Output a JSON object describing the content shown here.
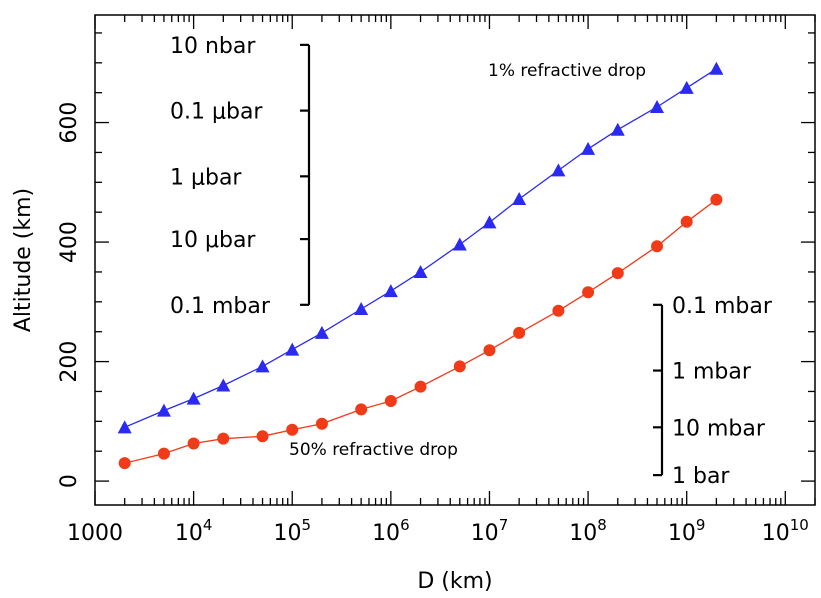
{
  "chart_data": {
    "type": "line",
    "xlabel": "D (km)",
    "ylabel": "Altitude (km)",
    "xscale": "log",
    "xlim": [
      1000,
      20000000000
    ],
    "ylim": [
      -40,
      780
    ],
    "grid": false,
    "legend": "none",
    "x_ticks": [
      {
        "value": 1000,
        "label": "1000"
      },
      {
        "value": 10000,
        "base": "10",
        "exp": "4"
      },
      {
        "value": 100000,
        "base": "10",
        "exp": "5"
      },
      {
        "value": 1000000,
        "base": "10",
        "exp": "6"
      },
      {
        "value": 10000000,
        "base": "10",
        "exp": "7"
      },
      {
        "value": 100000000,
        "base": "10",
        "exp": "8"
      },
      {
        "value": 1000000000,
        "base": "10",
        "exp": "9"
      },
      {
        "value": 10000000000,
        "base": "10",
        "exp": "10"
      }
    ],
    "y_ticks": [
      0,
      200,
      400,
      600
    ],
    "series": [
      {
        "marker": "triangle",
        "color": "#2a2af0",
        "x": [
          2000,
          5000,
          10000,
          20000,
          50000,
          100000,
          200000,
          500000,
          1000000,
          2000000,
          5000000,
          10000000,
          20000000,
          50000000,
          100000000,
          200000000,
          500000000,
          1000000000,
          2000000000
        ],
        "y": [
          90,
          118,
          138,
          160,
          192,
          220,
          248,
          288,
          318,
          350,
          396,
          433,
          472,
          520,
          556,
          588,
          626,
          658,
          690
        ]
      },
      {
        "marker": "circle",
        "color": "#f03a18",
        "x": [
          2000,
          5000,
          10000,
          20000,
          50000,
          100000,
          200000,
          500000,
          1000000,
          2000000,
          5000000,
          10000000,
          20000000,
          50000000,
          100000000,
          200000000,
          500000000,
          1000000000,
          2000000000
        ],
        "y": [
          30,
          46,
          63,
          71,
          75,
          86,
          96,
          120,
          134,
          158,
          192,
          219,
          248,
          285,
          316,
          348,
          393,
          434,
          471
        ]
      }
    ],
    "annotations": [
      {
        "text": "1% refractive drop",
        "color": "#2a2af0"
      },
      {
        "text": "50% refractive drop",
        "color": "#f03a18"
      }
    ],
    "pressure_scale_left": [
      {
        "text": "10 nbar",
        "altitude": 730
      },
      {
        "text": "0.1 μbar",
        "altitude": 620
      },
      {
        "text": "1 μbar",
        "altitude": 510
      },
      {
        "text": "10 μbar",
        "altitude": 405
      },
      {
        "text": "0.1 mbar",
        "altitude": 295
      }
    ],
    "pressure_scale_right": [
      {
        "text": "0.1 mbar",
        "altitude": 295
      },
      {
        "text": "1 mbar",
        "altitude": 185
      },
      {
        "text": "10 mbar",
        "altitude": 90
      },
      {
        "text": "1 bar",
        "altitude": 10
      }
    ]
  }
}
